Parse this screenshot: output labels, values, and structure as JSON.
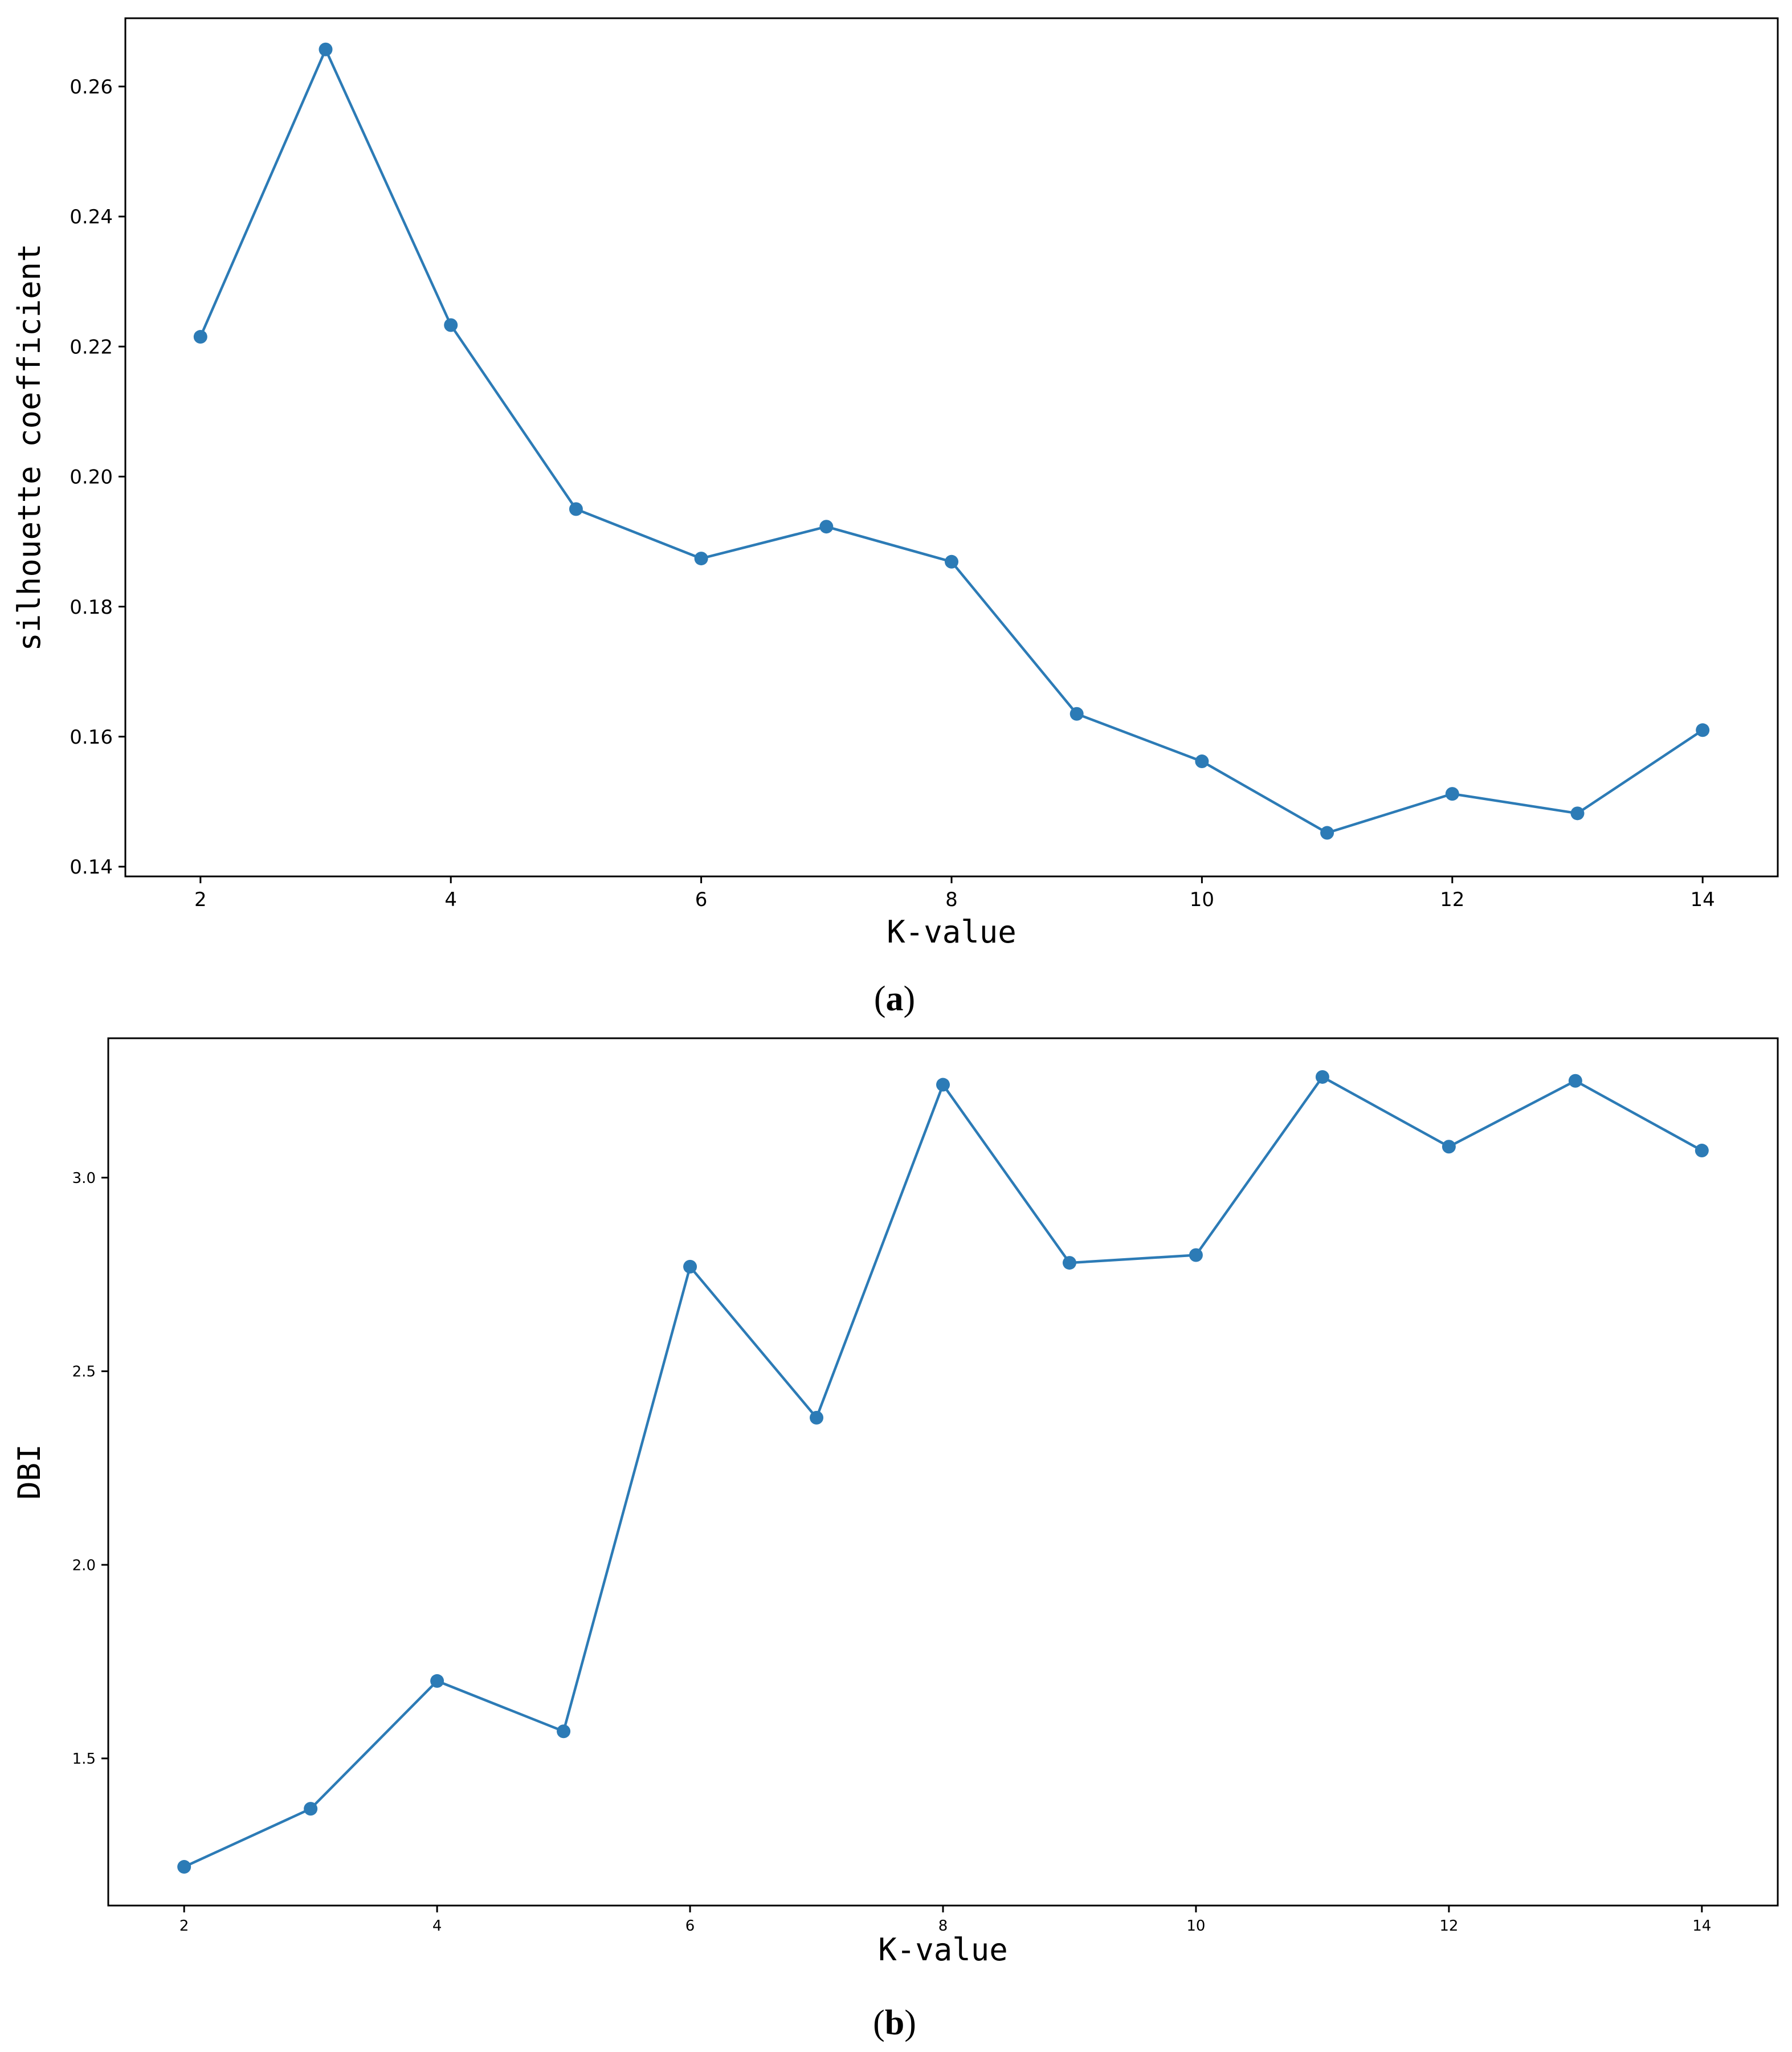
{
  "colors": {
    "series": "#2c7bb6",
    "axis": "#000000",
    "background": "#ffffff"
  },
  "chart_data": [
    {
      "panel_label_prefix": "(",
      "panel_letter": "a",
      "panel_label_suffix": ")",
      "type": "line",
      "title": "",
      "xlabel": "K-value",
      "ylabel": "silhouette coefficient",
      "xlim": [
        1.4,
        14.6
      ],
      "ylim": [
        0.1385,
        0.2705
      ],
      "xticks": [
        2,
        4,
        6,
        8,
        10,
        12,
        14
      ],
      "xtick_labels": [
        "2",
        "4",
        "6",
        "8",
        "10",
        "12",
        "14"
      ],
      "yticks": [
        0.14,
        0.16,
        0.18,
        0.2,
        0.22,
        0.24,
        0.26
      ],
      "ytick_labels": [
        "0.14",
        "0.16",
        "0.18",
        "0.20",
        "0.22",
        "0.24",
        "0.26"
      ],
      "grid": false,
      "markers": true,
      "series": [
        {
          "x": [
            2,
            3,
            4,
            5,
            6,
            7,
            8,
            9,
            10,
            11,
            12,
            13,
            14
          ],
          "values": [
            0.2215,
            0.2657,
            0.2233,
            0.195,
            0.1874,
            0.1923,
            0.1869,
            0.1635,
            0.1562,
            0.1452,
            0.1512,
            0.1482,
            0.161
          ]
        }
      ]
    },
    {
      "panel_label_prefix": "(",
      "panel_letter": "b",
      "panel_label_suffix": ")",
      "type": "line",
      "title": "",
      "xlabel": "K-value",
      "ylabel": "DBI",
      "xlim": [
        1.4,
        14.6
      ],
      "ylim": [
        1.12,
        3.36
      ],
      "xticks": [
        2,
        4,
        6,
        8,
        10,
        12,
        14
      ],
      "xtick_labels": [
        "2",
        "4",
        "6",
        "8",
        "10",
        "12",
        "14"
      ],
      "yticks": [
        1.5,
        2.0,
        2.5,
        3.0
      ],
      "ytick_labels": [
        "1.5",
        "2.0",
        "2.5",
        "3.0"
      ],
      "grid": false,
      "markers": true,
      "series": [
        {
          "x": [
            2,
            3,
            4,
            5,
            6,
            7,
            8,
            9,
            10,
            11,
            12,
            13,
            14
          ],
          "values": [
            1.22,
            1.37,
            1.7,
            1.57,
            2.77,
            2.38,
            3.24,
            2.78,
            2.8,
            3.26,
            3.08,
            3.25,
            3.07
          ]
        }
      ]
    }
  ]
}
